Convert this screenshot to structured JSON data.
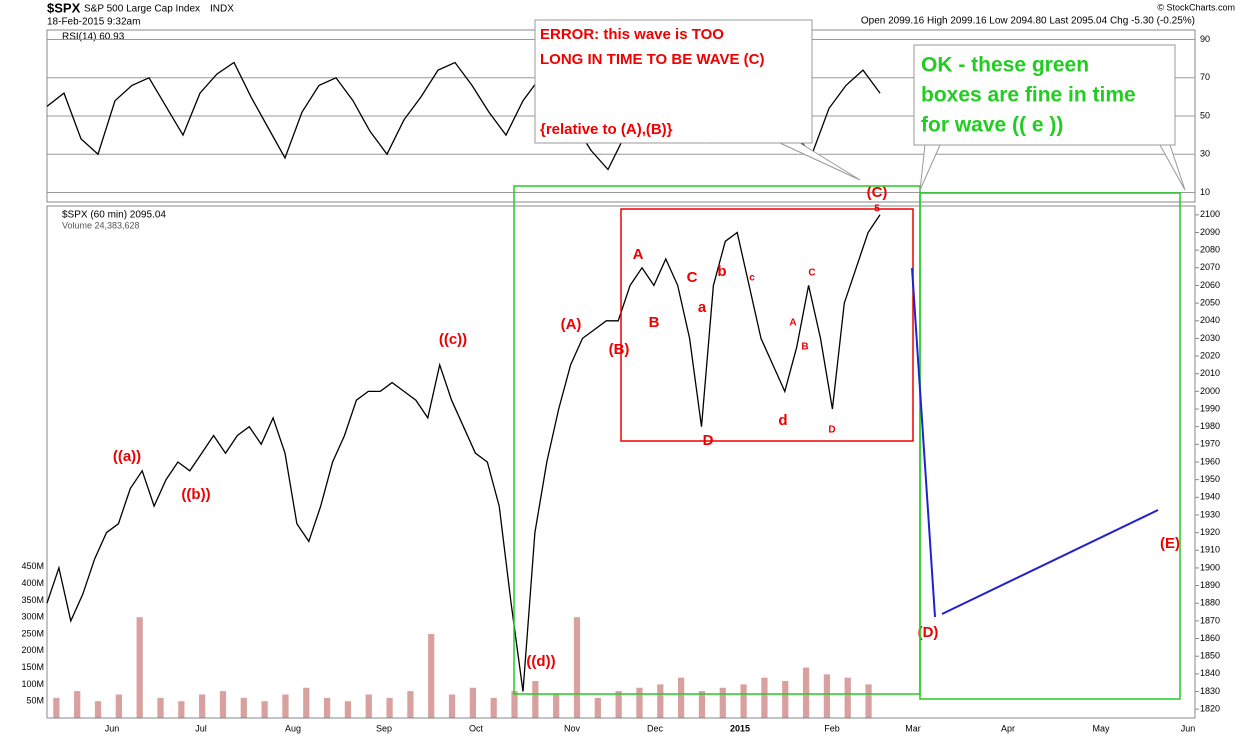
{
  "header": {
    "symbol": "$SPX",
    "name": "S&P 500 Large Cap Index",
    "exchange": "INDX",
    "date": "18-Feb-2015 9:32am",
    "quote": "Open 2099.16  High 2099.16  Low 2094.80  Last 2095.04  Chg -5.30 (-0.25%)",
    "credit": "© StockCharts.com"
  },
  "chart_data": [
    {
      "type": "line",
      "title": "RSI(14) 60.93",
      "color": "#000000",
      "values": [
        55,
        62,
        38,
        30,
        58,
        66,
        70,
        55,
        40,
        62,
        72,
        78,
        60,
        44,
        28,
        52,
        66,
        70,
        58,
        42,
        30,
        48,
        60,
        74,
        78,
        66,
        52,
        40,
        58,
        70,
        64,
        46,
        32,
        22,
        40,
        62,
        70,
        58,
        44,
        36,
        50,
        64,
        72,
        58,
        40,
        30,
        54,
        66,
        74,
        62
      ],
      "ylim": [
        5,
        95
      ],
      "yticks": [
        10,
        30,
        50,
        70,
        90
      ]
    },
    {
      "type": "line",
      "title": "$SPX (60 min) 2095.04",
      "subtitle": "Volume 24,383,628",
      "color": "#000000",
      "values": [
        1880,
        1900,
        1870,
        1885,
        1905,
        1920,
        1925,
        1945,
        1955,
        1935,
        1950,
        1960,
        1955,
        1965,
        1975,
        1965,
        1975,
        1980,
        1970,
        1985,
        1965,
        1925,
        1915,
        1935,
        1960,
        1975,
        1995,
        2000,
        2000,
        2005,
        2000,
        1995,
        1985,
        2015,
        1995,
        1980,
        1965,
        1960,
        1935,
        1880,
        1830,
        1920,
        1960,
        1990,
        2015,
        2030,
        2035,
        2040,
        2040,
        2060,
        2070,
        2060,
        2075,
        2060,
        2030,
        1980,
        2060,
        2085,
        2090,
        2060,
        2030,
        2015,
        2000,
        2025,
        2060,
        2030,
        1990,
        2050,
        2070,
        2090,
        2100
      ],
      "ylim": [
        1815,
        2105
      ],
      "yticks": [
        1820,
        1830,
        1840,
        1850,
        1860,
        1870,
        1880,
        1890,
        1900,
        1910,
        1920,
        1930,
        1940,
        1950,
        1960,
        1970,
        1980,
        1990,
        2000,
        2010,
        2020,
        2030,
        2040,
        2050,
        2060,
        2070,
        2080,
        2090,
        2100
      ],
      "x_ticks": [
        "Jun",
        "Jul",
        "Aug",
        "Sep",
        "Oct",
        "Nov",
        "Dec",
        "2015",
        "Feb",
        "Mar",
        "Apr",
        "May",
        "Jun"
      ]
    },
    {
      "type": "bar",
      "color": "#c06060",
      "values": [
        60,
        80,
        50,
        70,
        300,
        60,
        50,
        70,
        80,
        60,
        50,
        70,
        90,
        60,
        50,
        70,
        60,
        80,
        250,
        70,
        90,
        60,
        80,
        110,
        70,
        300,
        60,
        80,
        90,
        100,
        120,
        80,
        90,
        100,
        120,
        110,
        150,
        130,
        120,
        100
      ],
      "ylim": [
        0,
        500
      ],
      "yticks": [
        {
          "value": 50,
          "label": "50M"
        },
        {
          "value": 100,
          "label": "100M"
        },
        {
          "value": 150,
          "label": "150M"
        },
        {
          "value": 200,
          "label": "200M"
        },
        {
          "value": 250,
          "label": "250M"
        },
        {
          "value": 300,
          "label": "300M"
        },
        {
          "value": 350,
          "label": "350M"
        },
        {
          "value": 400,
          "label": "400M"
        },
        {
          "value": 450,
          "label": "450M"
        }
      ]
    }
  ],
  "annotations": [
    "((a))",
    "((b))",
    "((c))",
    "((d))",
    "(A)",
    "(B)",
    "A",
    "B",
    "C",
    "a",
    "b",
    "c",
    "D",
    "d",
    "A",
    "B",
    "C",
    "D",
    "(C)",
    "5",
    "(D)",
    "(E)"
  ],
  "callouts": {
    "error_line1": "ERROR: this wave is TOO",
    "error_line2": "LONG IN TIME TO BE WAVE (C)",
    "error_line3": "{relative to (A),(B)}",
    "ok_line1": "OK - these green",
    "ok_line2": "boxes are fine in time",
    "ok_line3": "for wave (( e ))"
  }
}
